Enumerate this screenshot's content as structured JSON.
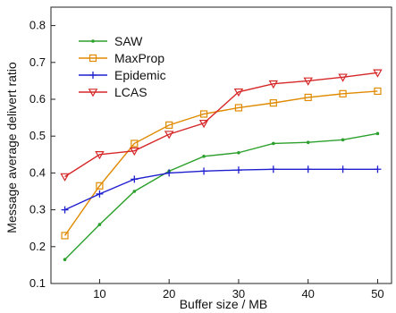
{
  "chart_data": {
    "type": "line",
    "title": "",
    "xlabel": "Buffer size / MB",
    "ylabel": "Message average delivert ratio",
    "x": [
      5,
      10,
      15,
      20,
      25,
      30,
      35,
      40,
      45,
      50
    ],
    "xticks": [
      10,
      20,
      30,
      40,
      50
    ],
    "xlim": [
      3,
      52
    ],
    "yticks": [
      0.1,
      0.2,
      0.3,
      0.4,
      0.5,
      0.6,
      0.7,
      0.8
    ],
    "ylim": [
      0.1,
      0.85
    ],
    "grid": false,
    "legend_position": "top-left",
    "series": [
      {
        "name": "SAW",
        "color": "#2ca02c",
        "marker": "dot",
        "values": [
          0.165,
          0.26,
          0.35,
          0.405,
          0.445,
          0.455,
          0.48,
          0.483,
          0.49,
          0.507
        ]
      },
      {
        "name": "MaxProp",
        "color": "#e08a00",
        "marker": "square",
        "values": [
          0.23,
          0.365,
          0.48,
          0.53,
          0.56,
          0.577,
          0.59,
          0.605,
          0.615,
          0.622
        ]
      },
      {
        "name": "Epidemic",
        "color": "#1f1fd0",
        "marker": "plus",
        "values": [
          0.3,
          0.343,
          0.383,
          0.4,
          0.405,
          0.408,
          0.41,
          0.41,
          0.41,
          0.41
        ]
      },
      {
        "name": "LCAS",
        "color": "#d62728",
        "marker": "triangle-down",
        "values": [
          0.39,
          0.45,
          0.46,
          0.505,
          0.535,
          0.62,
          0.642,
          0.65,
          0.66,
          0.672
        ]
      }
    ]
  }
}
